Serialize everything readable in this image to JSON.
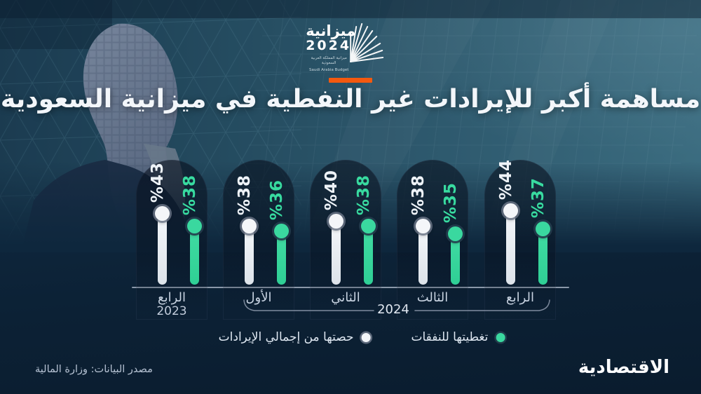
{
  "header": {
    "logo": {
      "title": "ميزانية",
      "year": "2024",
      "subtitle_ar": "ميزانية المملكة العربية السعودية",
      "subtitle_en": "Saudi Arabia Budget"
    },
    "accent_color": "#f4590f",
    "title": "مساهمة أكبر للإيرادات غير النفطية في ميزانية السعودية"
  },
  "chart_data": {
    "type": "bar",
    "direction": "rtl",
    "unit": "%",
    "value_prefix": "%",
    "categories": [
      "الرابع",
      "الأول",
      "الثاني",
      "الثالث",
      "الرابع"
    ],
    "year_groups": [
      {
        "label": "2023",
        "categories": [
          "الرابع"
        ]
      },
      {
        "label": "2024",
        "categories": [
          "الأول",
          "الثاني",
          "الثالث",
          "الرابع"
        ]
      }
    ],
    "series": [
      {
        "name": "حصتها من إجمالي الإيرادات",
        "color": "#eef2f7",
        "values": [
          43,
          38,
          40,
          38,
          44
        ]
      },
      {
        "name": "تغطيتها للنفقات",
        "color": "#3ad89f",
        "values": [
          38,
          36,
          38,
          35,
          37
        ]
      }
    ],
    "ylim": [
      0,
      50
    ],
    "grid": false,
    "legend_position": "bottom"
  },
  "legend": [
    {
      "label": "تغطيتها للنفقات",
      "color": "#3ad89f"
    },
    {
      "label": "حصتها من إجمالي الإيرادات",
      "color": "#eef2f7"
    }
  ],
  "footer": {
    "source": "مصدر البيانات: وزارة المالية",
    "brand": "الاقتصادية"
  }
}
